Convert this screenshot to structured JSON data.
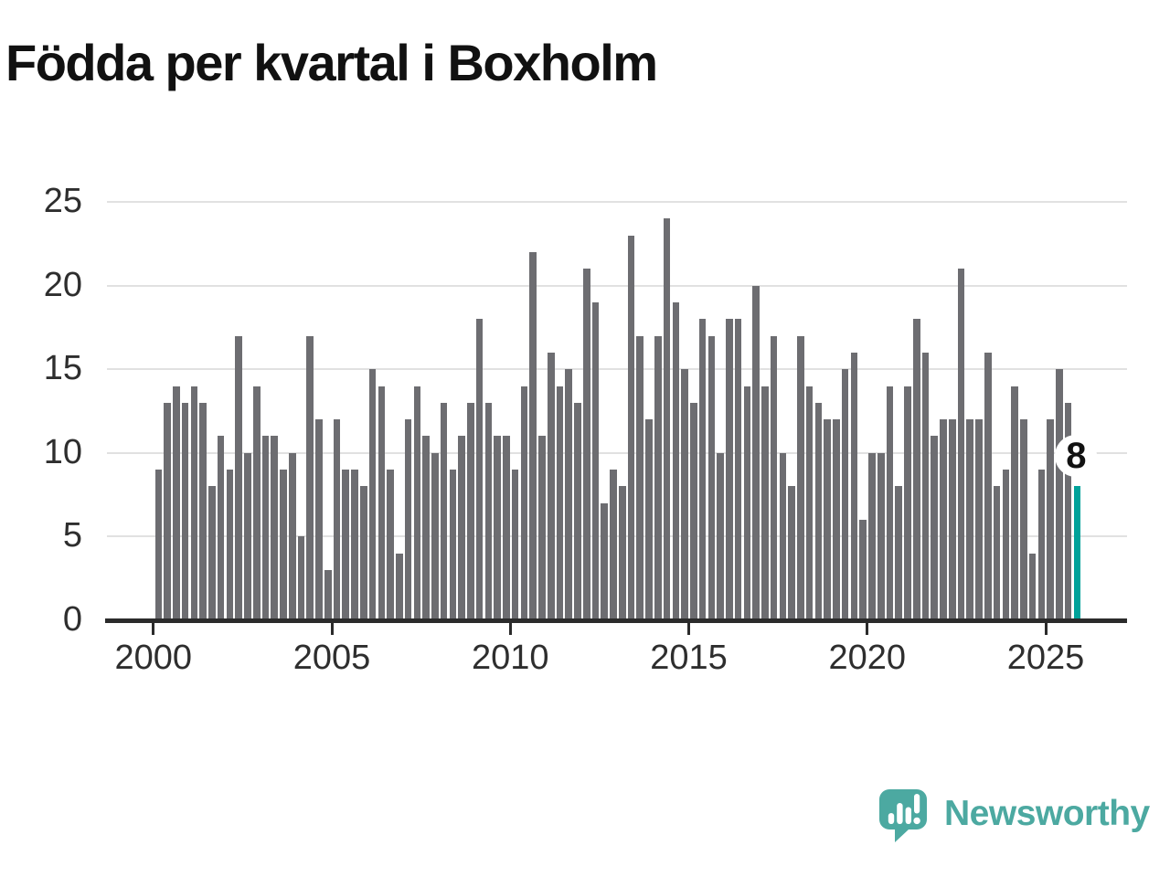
{
  "title": "Födda per kvartal i Boxholm",
  "annotation": {
    "value_label": "8"
  },
  "branding": {
    "name": "Newsworthy"
  },
  "colors": {
    "title": "#111111",
    "label": "#2e2e2e",
    "gridline": "#e1e1e1",
    "axis": "#2b2b2b",
    "bar": "#6d6d71",
    "highlight": "#00a29a",
    "brand": "#4ca9a1"
  },
  "chart_data": {
    "type": "bar",
    "title": "Födda per kvartal i Boxholm",
    "x_unit": "quarter",
    "start_year": 2000,
    "end_year": 2025,
    "x_tick_years": [
      2000,
      2005,
      2010,
      2015,
      2020,
      2025
    ],
    "y_ticks": [
      0,
      5,
      10,
      15,
      20,
      25
    ],
    "ylim": [
      0,
      25
    ],
    "grid": "horizontal",
    "legend": "none",
    "highlight_last_bar": true,
    "last_bar_label": "8",
    "series": [
      {
        "name": "Födda",
        "by_year": [
          {
            "year": 2000,
            "quarters": [
              9,
              13,
              14,
              13
            ]
          },
          {
            "year": 2001,
            "quarters": [
              14,
              13,
              8,
              11
            ]
          },
          {
            "year": 2002,
            "quarters": [
              9,
              17,
              10,
              14
            ]
          },
          {
            "year": 2003,
            "quarters": [
              11,
              11,
              9,
              10
            ]
          },
          {
            "year": 2004,
            "quarters": [
              5,
              17,
              12,
              3
            ]
          },
          {
            "year": 2005,
            "quarters": [
              12,
              9,
              9,
              8
            ]
          },
          {
            "year": 2006,
            "quarters": [
              15,
              14,
              9,
              4
            ]
          },
          {
            "year": 2007,
            "quarters": [
              12,
              14,
              11,
              10
            ]
          },
          {
            "year": 2008,
            "quarters": [
              13,
              9,
              11,
              13
            ]
          },
          {
            "year": 2009,
            "quarters": [
              18,
              13,
              11,
              11
            ]
          },
          {
            "year": 2010,
            "quarters": [
              9,
              14,
              22,
              11
            ]
          },
          {
            "year": 2011,
            "quarters": [
              16,
              14,
              15,
              13
            ]
          },
          {
            "year": 2012,
            "quarters": [
              21,
              19,
              7,
              9
            ]
          },
          {
            "year": 2013,
            "quarters": [
              8,
              23,
              17,
              12
            ]
          },
          {
            "year": 2014,
            "quarters": [
              17,
              24,
              19,
              15
            ]
          },
          {
            "year": 2015,
            "quarters": [
              13,
              18,
              17,
              10
            ]
          },
          {
            "year": 2016,
            "quarters": [
              18,
              18,
              14,
              20
            ]
          },
          {
            "year": 2017,
            "quarters": [
              14,
              17,
              10,
              8
            ]
          },
          {
            "year": 2018,
            "quarters": [
              17,
              14,
              13,
              12
            ]
          },
          {
            "year": 2019,
            "quarters": [
              12,
              15,
              16,
              6
            ]
          },
          {
            "year": 2020,
            "quarters": [
              10,
              10,
              14,
              8
            ]
          },
          {
            "year": 2021,
            "quarters": [
              14,
              18,
              16,
              11
            ]
          },
          {
            "year": 2022,
            "quarters": [
              12,
              12,
              21,
              12
            ]
          },
          {
            "year": 2023,
            "quarters": [
              12,
              16,
              8,
              9
            ]
          },
          {
            "year": 2024,
            "quarters": [
              14,
              12,
              4,
              9
            ]
          },
          {
            "year": 2025,
            "quarters": [
              12,
              15,
              13,
              8
            ]
          }
        ]
      }
    ]
  }
}
